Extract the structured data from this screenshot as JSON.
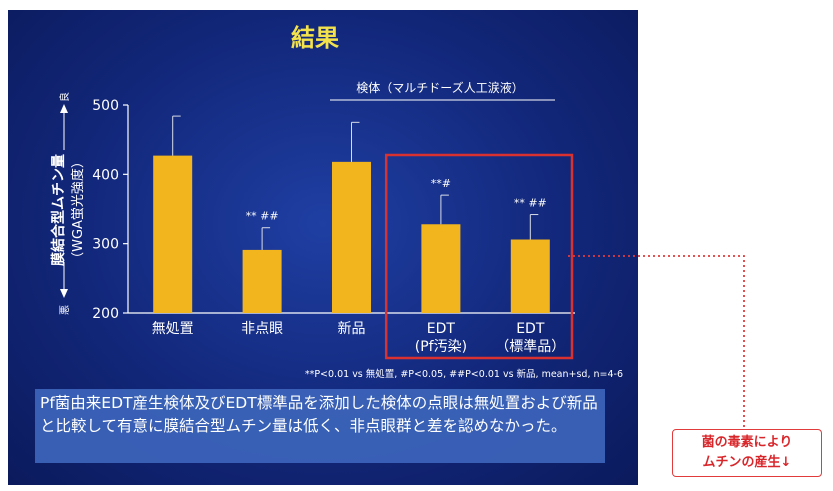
{
  "slide": {
    "title": "結果",
    "note": "Pf菌由来EDT産生検体及びEDT標準品を添加した検体の点眼は無処置および新品と比較して有意に膜結合型ムチン量は低く、非点眼群と差を認めなかった。",
    "footnote": "**P<0.01 vs 無処置, #P<0.05, ##P<0.01 vs 新品, mean+sd, n=4-6"
  },
  "callout": {
    "line1": "菌の毒素により",
    "line2": "ムチンの産生↓"
  },
  "colors": {
    "bar": "#f2b51d",
    "highlight": "#d93030",
    "axis": "#ffffff"
  },
  "chart_data": {
    "type": "bar",
    "ylabel": "膜結合型ムチン量",
    "ylabel_sub": "（WGA蛍光強度）",
    "y_axis_good": "良",
    "y_axis_bad": "悪",
    "group_label": "検体（マルチドーズ人工涙液）",
    "ylim": [
      200,
      500
    ],
    "yticks": [
      "200",
      "300",
      "400",
      "500"
    ],
    "categories": [
      {
        "line1": "無処置",
        "line2": ""
      },
      {
        "line1": "非点眼",
        "line2": ""
      },
      {
        "line1": "新品",
        "line2": ""
      },
      {
        "line1": "EDT",
        "line2": "(Pf汚染)"
      },
      {
        "line1": "EDT",
        "line2": "（標準品）"
      }
    ],
    "values": [
      427,
      291,
      418,
      328,
      306
    ],
    "sd": [
      57,
      32,
      57,
      42,
      36
    ],
    "annotations": [
      "",
      "** ##",
      "",
      "**#",
      "** ##"
    ]
  }
}
